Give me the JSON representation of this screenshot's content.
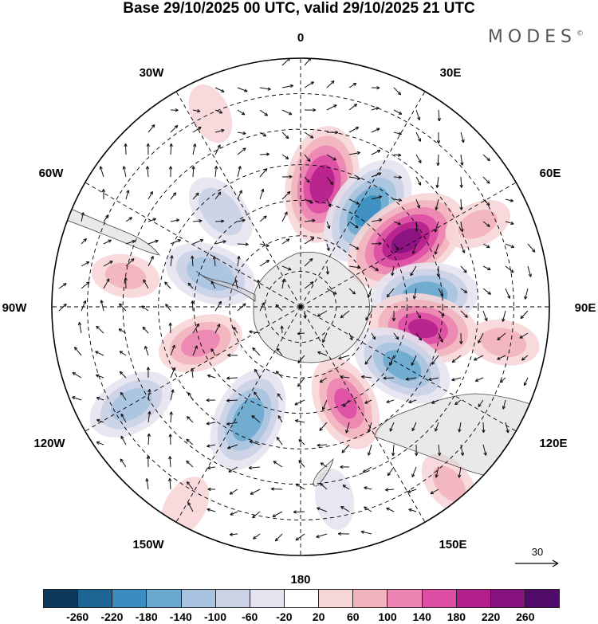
{
  "title": "Base 29/10/2025 00 UTC, valid 29/10/2025 21 UTC",
  "brand": "MODES",
  "brand_mark": "©",
  "longitude_labels": {
    "lon_0": "0",
    "lon_30e": "30E",
    "lon_60e": "60E",
    "lon_90e": "90E",
    "lon_120e": "120E",
    "lon_150e": "150E",
    "lon_180": "180",
    "lon_150w": "150W",
    "lon_120w": "120W",
    "lon_90w": "90W",
    "lon_60w": "60W",
    "lon_30w": "30W"
  },
  "reference_vector": {
    "label": "30"
  },
  "colorbar": {
    "colors": [
      "#0b3a5c",
      "#1d6595",
      "#3b8dbf",
      "#6aa8cf",
      "#a8c3df",
      "#cbd2e6",
      "#e5e3ef",
      "#ffffff",
      "#f7d6d8",
      "#f1b3bd",
      "#ec85b1",
      "#dc4da3",
      "#b51f8c",
      "#86137f",
      "#4f0a6a"
    ],
    "tick_labels": [
      "-260",
      "-220",
      "-180",
      "-140",
      "-100",
      "-60",
      "-20",
      "20",
      "60",
      "100",
      "140",
      "180",
      "220",
      "260"
    ]
  },
  "anomaly_centers": [
    {
      "lon": 10,
      "lat": -55,
      "value": 200
    },
    {
      "lon": 35,
      "lat": -57,
      "value": -190
    },
    {
      "lon": 58,
      "lat": -55,
      "value": 230
    },
    {
      "lon": 85,
      "lat": -55,
      "value": -170
    },
    {
      "lon": 100,
      "lat": -55,
      "value": 180
    },
    {
      "lon": 120,
      "lat": -57,
      "value": -160
    },
    {
      "lon": 155,
      "lat": -60,
      "value": 140
    },
    {
      "lon": -155,
      "lat": -55,
      "value": -170
    },
    {
      "lon": -110,
      "lat": -60,
      "value": 110
    },
    {
      "lon": -120,
      "lat": -35,
      "value": -120
    },
    {
      "lon": -70,
      "lat": -63,
      "value": -130
    },
    {
      "lon": -40,
      "lat": -55,
      "value": -90
    },
    {
      "lon": -80,
      "lat": -40,
      "value": 60
    },
    {
      "lon": 65,
      "lat": -35,
      "value": 60
    },
    {
      "lon": 100,
      "lat": -32,
      "value": 70
    },
    {
      "lon": 140,
      "lat": -25,
      "value": 60
    },
    {
      "lon": -150,
      "lat": -25,
      "value": 50
    },
    {
      "lon": 170,
      "lat": -35,
      "value": -40
    },
    {
      "lon": -25,
      "lat": -30,
      "value": 40
    }
  ]
}
